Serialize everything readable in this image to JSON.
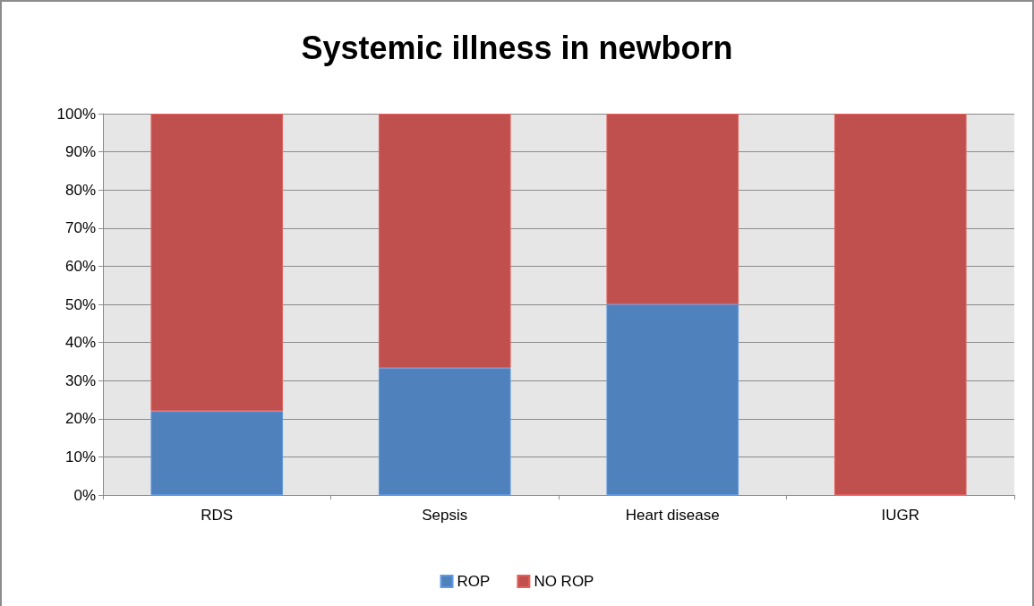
{
  "chart_data": {
    "type": "bar",
    "title": "Systemic illness in newborn",
    "categories": [
      "RDS",
      "Sepsis",
      "Heart disease",
      "IUGR"
    ],
    "series": [
      {
        "name": "ROP",
        "color": "#4f81bd",
        "values": [
          22,
          33.3,
          50,
          0
        ]
      },
      {
        "name": "NO ROP",
        "color": "#c0504d",
        "values": [
          78,
          66.7,
          50,
          100
        ]
      }
    ],
    "stacked": true,
    "ylim": [
      0,
      100
    ],
    "yticks": [
      {
        "value": 0,
        "label": "0%"
      },
      {
        "value": 10,
        "label": "10%"
      },
      {
        "value": 20,
        "label": "20%"
      },
      {
        "value": 30,
        "label": "30%"
      },
      {
        "value": 40,
        "label": "40%"
      },
      {
        "value": 50,
        "label": "50%"
      },
      {
        "value": 60,
        "label": "60%"
      },
      {
        "value": 70,
        "label": "70%"
      },
      {
        "value": 80,
        "label": "80%"
      },
      {
        "value": 90,
        "label": "90%"
      },
      {
        "value": 100,
        "label": "100%"
      }
    ],
    "grid": "y",
    "legend": "bottom"
  }
}
